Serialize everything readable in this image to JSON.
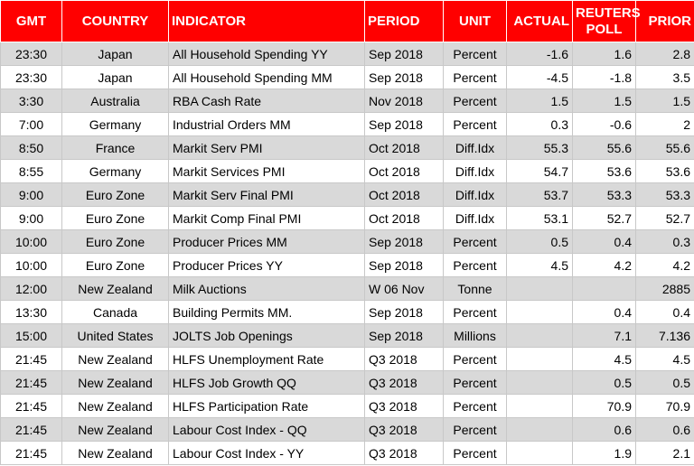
{
  "table": {
    "columns": [
      "GMT",
      "COUNTRY",
      "INDICATOR",
      "PERIOD",
      "UNIT",
      "ACTUAL",
      [
        "REUTERS",
        "POLL"
      ],
      "PRIOR"
    ],
    "rows": [
      [
        "23:30",
        "Japan",
        "All Household Spending YY",
        "Sep 2018",
        "Percent",
        "-1.6",
        "1.6",
        "2.8"
      ],
      [
        "23:30",
        "Japan",
        "All Household Spending MM",
        "Sep 2018",
        "Percent",
        "-4.5",
        "-1.8",
        "3.5"
      ],
      [
        "3:30",
        "Australia",
        "RBA Cash Rate",
        "Nov 2018",
        "Percent",
        "1.5",
        "1.5",
        "1.5"
      ],
      [
        "7:00",
        "Germany",
        "Industrial Orders MM",
        "Sep 2018",
        "Percent",
        "0.3",
        "-0.6",
        "2"
      ],
      [
        "8:50",
        "France",
        "Markit Serv PMI",
        "Oct 2018",
        "Diff.Idx",
        "55.3",
        "55.6",
        "55.6"
      ],
      [
        "8:55",
        "Germany",
        "Markit Services PMI",
        "Oct 2018",
        "Diff.Idx",
        "54.7",
        "53.6",
        "53.6"
      ],
      [
        "9:00",
        "Euro Zone",
        "Markit Serv Final PMI",
        "Oct 2018",
        "Diff.Idx",
        "53.7",
        "53.3",
        "53.3"
      ],
      [
        "9:00",
        "Euro Zone",
        "Markit Comp Final PMI",
        "Oct 2018",
        "Diff.Idx",
        "53.1",
        "52.7",
        "52.7"
      ],
      [
        "10:00",
        "Euro Zone",
        "Producer Prices MM",
        "Sep 2018",
        "Percent",
        "0.5",
        "0.4",
        "0.3"
      ],
      [
        "10:00",
        "Euro Zone",
        "Producer Prices YY",
        "Sep 2018",
        "Percent",
        "4.5",
        "4.2",
        "4.2"
      ],
      [
        "12:00",
        "New Zealand",
        "Milk Auctions",
        "W 06 Nov",
        "Tonne",
        null,
        null,
        "2885"
      ],
      [
        "13:30",
        "Canada",
        "Building Permits MM.",
        "Sep 2018",
        "Percent",
        null,
        "0.4",
        "0.4"
      ],
      [
        "15:00",
        "United States",
        "JOLTS Job Openings",
        "Sep 2018",
        "Millions",
        null,
        "7.1",
        "7.136"
      ],
      [
        "21:45",
        "New Zealand",
        "HLFS Unemployment Rate",
        "Q3 2018",
        "Percent",
        null,
        "4.5",
        "4.5"
      ],
      [
        "21:45",
        "New Zealand",
        "HLFS Job Growth QQ",
        "Q3 2018",
        "Percent",
        null,
        "0.5",
        "0.5"
      ],
      [
        "21:45",
        "New Zealand",
        "HLFS Participation Rate",
        "Q3 2018",
        "Percent",
        null,
        "70.9",
        "70.9"
      ],
      [
        "21:45",
        "New Zealand",
        "Labour Cost Index - QQ",
        "Q3 2018",
        "Percent",
        null,
        "0.6",
        "0.6"
      ],
      [
        "21:45",
        "New Zealand",
        "Labour Cost Index - YY",
        "Q3 2018",
        "Percent",
        null,
        "1.9",
        "2.1"
      ]
    ]
  }
}
